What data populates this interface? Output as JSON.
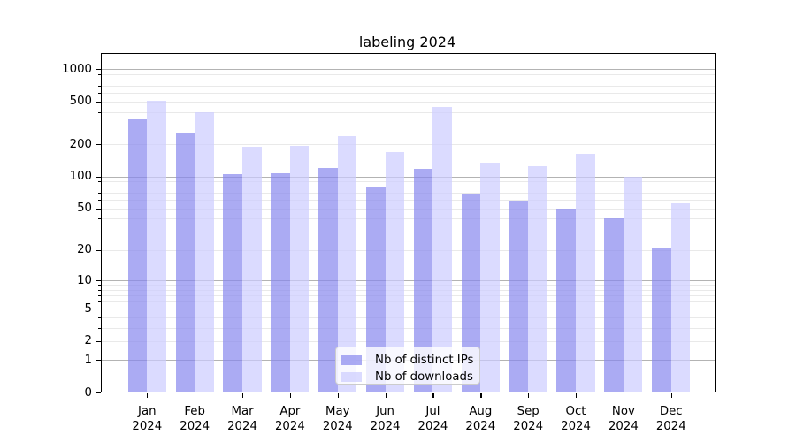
{
  "title": "labeling 2024",
  "chart_data": {
    "type": "bar",
    "title": "labeling 2024",
    "categories": [
      "Jan",
      "Feb",
      "Mar",
      "Apr",
      "May",
      "Jun",
      "Jul",
      "Aug",
      "Sep",
      "Oct",
      "Nov",
      "Dec"
    ],
    "category_year": "2024",
    "series": [
      {
        "name": "Nb of distinct IPs",
        "values": [
          340,
          258,
          106,
          108,
          121,
          80,
          119,
          69,
          59,
          50,
          40,
          21
        ]
      },
      {
        "name": "Nb of downloads",
        "values": [
          505,
          398,
          190,
          192,
          240,
          170,
          445,
          135,
          124,
          162,
          100,
          56
        ]
      }
    ],
    "yscale": "log10(value+1)",
    "ytick_labels": [
      "0",
      "1",
      "2",
      "5",
      "10",
      "20",
      "50",
      "100",
      "200",
      "500",
      "1000"
    ],
    "yticks_labeled": [
      0,
      1,
      2,
      5,
      10,
      20,
      50,
      100,
      200,
      500,
      1000
    ],
    "ygrid_major": [
      1,
      10,
      100,
      1000
    ],
    "ygrid_minor": [
      2,
      3,
      4,
      5,
      6,
      7,
      8,
      9,
      20,
      30,
      40,
      50,
      60,
      70,
      80,
      90,
      200,
      300,
      400,
      500,
      600,
      700,
      800,
      900
    ],
    "ylim": [
      0,
      1410
    ],
    "xlabel": "",
    "ylabel": "",
    "grid": true,
    "legend_position": "lower center"
  },
  "colors": {
    "bar_ips": "rgba(136,136,238,0.7)",
    "bar_downloads": "rgba(204,204,255,0.7)",
    "grid_major": "#b3b3b3",
    "grid_minor": "#e9e9e9",
    "text": "#000000",
    "spine": "#000000",
    "legend_border": "#cccccc"
  }
}
